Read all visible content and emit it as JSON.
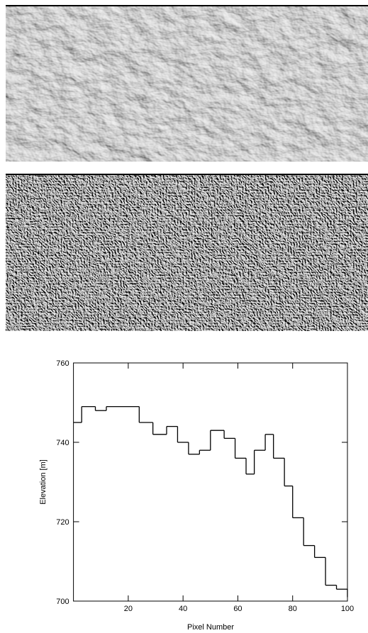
{
  "chart_data": {
    "type": "line",
    "step": "post",
    "xlabel": "Pixel Number",
    "ylabel": "Elevation [m]",
    "x": [
      0,
      3,
      8,
      12,
      24,
      29,
      34,
      38,
      42,
      46,
      50,
      55,
      59,
      63,
      66,
      70,
      73,
      77,
      80,
      84,
      88,
      92,
      96,
      100
    ],
    "values": [
      745,
      749,
      748,
      749,
      745,
      742,
      744,
      740,
      737,
      738,
      743,
      741,
      736,
      732,
      738,
      742,
      736,
      729,
      721,
      714,
      711,
      704,
      703,
      701
    ],
    "color": "#000000",
    "xlim": [
      0,
      100
    ],
    "xticks": [
      20,
      40,
      60,
      80,
      100
    ],
    "ylim": [
      700,
      760
    ],
    "yticks": [
      700,
      720,
      740,
      760
    ]
  }
}
